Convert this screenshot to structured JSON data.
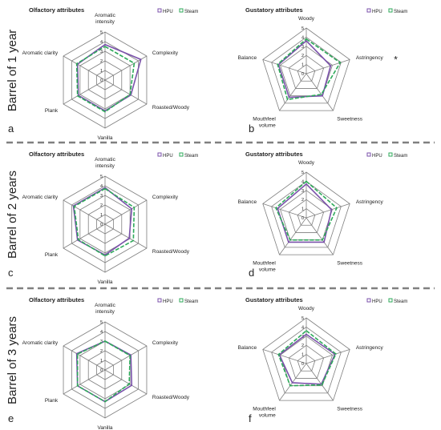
{
  "colors": {
    "hpu": "#7b52ab",
    "steam": "#2eaa5a",
    "grid": "#7f7f7f",
    "separator": "#808080"
  },
  "row_labels": [
    "Barrel of 1 year",
    "Barrel of 2 years",
    "Barrel of 3 years"
  ],
  "legend": {
    "hpu": "HPU",
    "steam": "Steam"
  },
  "chart_data": [
    {
      "type": "radar",
      "panel_letter": "a",
      "title": "Olfactory attributes",
      "axes": [
        "Aromatic intensity",
        "Complexity",
        "Roasted/Woody",
        "Vanilla",
        "Plank",
        "Aromatic clarity"
      ],
      "range": [
        0,
        5
      ],
      "ticks": [
        "0",
        "1",
        "2",
        "3",
        "4",
        "5"
      ],
      "series": [
        {
          "name": "HPU",
          "values": [
            3.7,
            4.3,
            3.1,
            3.2,
            3.2,
            3.3
          ]
        },
        {
          "name": "Steam",
          "values": [
            3.5,
            3.5,
            3.0,
            3.3,
            3.3,
            3.4
          ]
        }
      ],
      "significance_marks": []
    },
    {
      "type": "radar",
      "panel_letter": "b",
      "title": "Gustatory attributes",
      "axes": [
        "Woody",
        "Astringency",
        "Sweetness",
        "Mouthfeel volume",
        "Balance"
      ],
      "range": [
        0,
        5
      ],
      "ticks": [
        "0",
        "1",
        "2",
        "3",
        "4",
        "5"
      ],
      "series": [
        {
          "name": "HPU",
          "values": [
            3.6,
            2.8,
            3.0,
            3.2,
            3.2
          ]
        },
        {
          "name": "Steam",
          "values": [
            3.8,
            3.9,
            2.8,
            3.5,
            3.3
          ]
        }
      ],
      "significance_marks": [
        {
          "axis": "Astringency",
          "text": "*"
        }
      ]
    },
    {
      "type": "radar",
      "panel_letter": "c",
      "title": "Olfactory attributes",
      "axes": [
        "Aromatic intensity",
        "Complexity",
        "Roasted/Woody",
        "Vanilla",
        "Plank",
        "Aromatic clarity"
      ],
      "range": [
        0,
        5
      ],
      "ticks": [
        "0",
        "1",
        "2",
        "3",
        "4",
        "5"
      ],
      "series": [
        {
          "name": "HPU",
          "values": [
            3.8,
            3.2,
            2.9,
            3.2,
            3.3,
            3.8
          ]
        },
        {
          "name": "Steam",
          "values": [
            3.7,
            3.5,
            3.4,
            3.3,
            3.2,
            3.7
          ]
        }
      ],
      "significance_marks": []
    },
    {
      "type": "radar",
      "panel_letter": "d",
      "title": "Gustatory attributes",
      "axes": [
        "Woody",
        "Astringency",
        "Sweetness",
        "Mouthfeel volume",
        "Balance"
      ],
      "range": [
        0,
        5
      ],
      "ticks": [
        "0",
        "1",
        "2",
        "3",
        "4",
        "5"
      ],
      "series": [
        {
          "name": "HPU",
          "values": [
            3.7,
            2.9,
            3.3,
            3.3,
            3.3
          ]
        },
        {
          "name": "Steam",
          "values": [
            4.0,
            3.5,
            3.0,
            3.0,
            3.5
          ]
        }
      ],
      "significance_marks": []
    },
    {
      "type": "radar",
      "panel_letter": "e",
      "title": "Olfactory attributes",
      "axes": [
        "Aromatic intensity",
        "Complexity",
        "Roasted/Woody",
        "Vanilla",
        "Plank",
        "Aromatic clarity"
      ],
      "range": [
        0,
        5
      ],
      "ticks": [
        "0",
        "1",
        "2",
        "3",
        "4",
        "5"
      ],
      "series": [
        {
          "name": "HPU",
          "values": [
            3.0,
            3.1,
            3.2,
            3.3,
            3.3,
            3.4
          ]
        },
        {
          "name": "Steam",
          "values": [
            3.0,
            3.0,
            2.9,
            3.3,
            3.3,
            3.3
          ]
        }
      ],
      "significance_marks": []
    },
    {
      "type": "radar",
      "panel_letter": "f",
      "title": "Gustatory attributes",
      "axes": [
        "Woody",
        "Astringency",
        "Sweetness",
        "Mouthfeel volume",
        "Balance"
      ],
      "range": [
        0,
        5
      ],
      "ticks": [
        "0",
        "1",
        "2",
        "3",
        "4",
        "5"
      ],
      "series": [
        {
          "name": "HPU",
          "values": [
            3.2,
            3.3,
            2.8,
            2.6,
            3.1
          ]
        },
        {
          "name": "Steam",
          "values": [
            3.6,
            3.4,
            2.9,
            3.0,
            3.2
          ]
        }
      ],
      "significance_marks": []
    }
  ]
}
